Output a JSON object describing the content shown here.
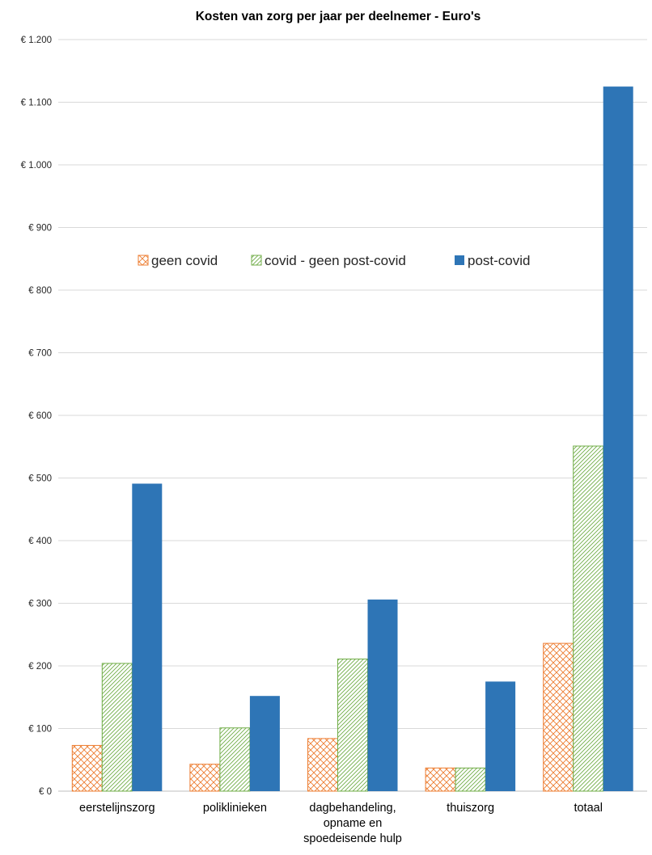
{
  "chart_data": {
    "type": "bar",
    "title": "Kosten van zorg per jaar per deelnemer - Euro's",
    "xlabel": "",
    "ylabel": "",
    "ylim": [
      0,
      1200
    ],
    "yticks": [
      0,
      100,
      200,
      300,
      400,
      500,
      600,
      700,
      800,
      900,
      1000,
      1100,
      1200
    ],
    "ytick_labels": [
      "€ 0",
      "€ 100",
      "€ 200",
      "€ 300",
      "€ 400",
      "€ 500",
      "€ 600",
      "€ 700",
      "€ 800",
      "€ 900",
      "€ 1.000",
      "€ 1.100",
      "€ 1.200"
    ],
    "grid": true,
    "legend_position": "center, inside plot area",
    "categories": [
      [
        "eerstelijnszorg"
      ],
      [
        "poliklinieken"
      ],
      [
        "dagbehandeling,",
        "opname en",
        "spoedeisende hulp"
      ],
      [
        "thuiszorg"
      ],
      [
        "totaal"
      ]
    ],
    "series": [
      {
        "name": "geen covid",
        "pattern": "crosshatch",
        "color": "#ED7D31",
        "values": [
          73,
          43,
          84,
          37,
          236
        ]
      },
      {
        "name": "covid - geen post-covid",
        "pattern": "diagonal",
        "color": "#70AD47",
        "values": [
          204,
          101,
          211,
          37,
          551
        ]
      },
      {
        "name": "post-covid",
        "pattern": "solid",
        "color": "#2E75B6",
        "values": [
          491,
          152,
          306,
          175,
          1125
        ]
      }
    ]
  }
}
